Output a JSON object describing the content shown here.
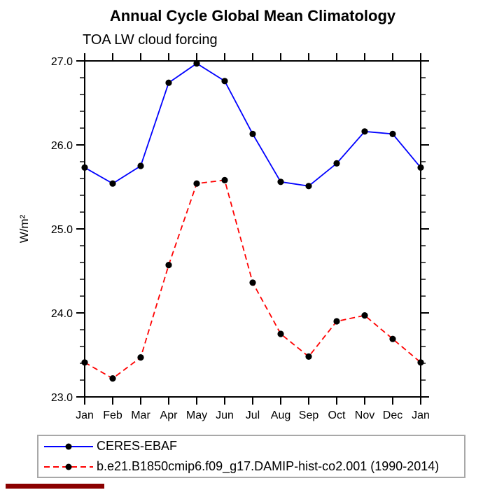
{
  "header": {
    "title": "Annual Cycle Global Mean Climatology",
    "subtitle": "TOA LW cloud forcing"
  },
  "chart_data": {
    "type": "line",
    "title": "Annual Cycle Global Mean Climatology",
    "subtitle": "TOA LW cloud forcing",
    "xlabel": "",
    "ylabel": "W/m²",
    "ylim": [
      23.0,
      27.0
    ],
    "y_major_ticks": [
      23.0,
      24.0,
      25.0,
      26.0,
      27.0
    ],
    "y_tick_labels": [
      "23.0",
      "24.0",
      "25.0",
      "26.0",
      "27.0"
    ],
    "y_minor_step": 0.2,
    "grid": false,
    "frame": true,
    "legend_position": "bottom-left",
    "categories": [
      "Jan",
      "Feb",
      "Mar",
      "Apr",
      "May",
      "Jun",
      "Jul",
      "Aug",
      "Sep",
      "Oct",
      "Nov",
      "Dec",
      "Jan"
    ],
    "marker_color": "#000000",
    "axis_color": "#000000",
    "series": [
      {
        "name": "CERES-EBAF",
        "color": "#0000ff",
        "line_style": "solid",
        "marker": "filled-circle",
        "values": [
          25.73,
          25.54,
          25.75,
          26.74,
          26.97,
          26.76,
          26.13,
          25.56,
          25.51,
          25.78,
          26.16,
          26.13,
          25.73
        ]
      },
      {
        "name": "b.e21.B1850cmip6.f09_g17.DAMIP-hist-co2.001 (1990-2014)",
        "color": "#ff0000",
        "line_style": "dashed",
        "marker": "filled-circle",
        "values": [
          23.41,
          23.22,
          23.47,
          24.57,
          25.54,
          25.58,
          24.36,
          23.75,
          23.48,
          23.9,
          23.97,
          23.69,
          23.41
        ]
      }
    ]
  }
}
